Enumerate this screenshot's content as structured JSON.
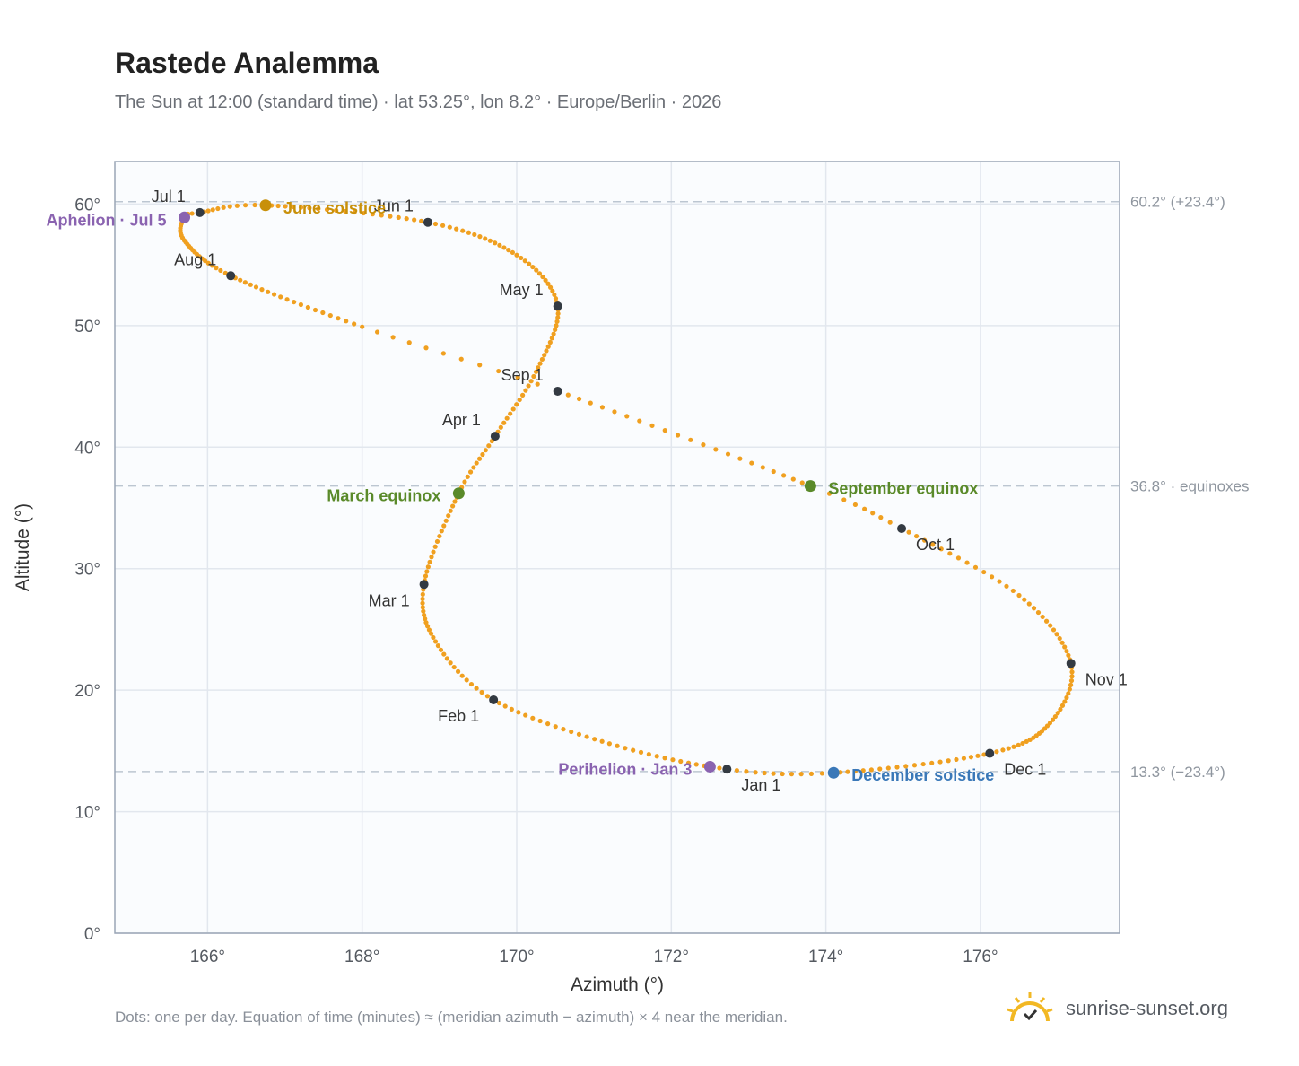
{
  "title": "Rastede Analemma",
  "subtitle": "The Sun at 12:00 (standard time) · lat 53.25°, lon 8.2° · Europe/Berlin · 2026",
  "footnote": "Dots: one per day. Equation of time (minutes) ≈ (meridian azimuth − azimuth) × 4 near the meridian.",
  "brand": "sunrise-sunset.org",
  "chart_data": {
    "type": "scatter",
    "xlabel": "Azimuth (°)",
    "ylabel": "Altitude (°)",
    "xlim": [
      164.8,
      177.8
    ],
    "ylim": [
      0,
      63.5
    ],
    "xticks": [
      166,
      168,
      170,
      172,
      174,
      176
    ],
    "yticks": [
      0,
      10,
      20,
      30,
      40,
      50,
      60
    ],
    "xtick_labels": [
      "166°",
      "168°",
      "170°",
      "172°",
      "174°",
      "176°"
    ],
    "ytick_labels": [
      "0°",
      "10°",
      "20°",
      "30°",
      "40°",
      "50°",
      "60°"
    ],
    "grid": true,
    "reference_lines": [
      {
        "y": 60.2,
        "label": "60.2° (+23.4°)"
      },
      {
        "y": 36.8,
        "label": "36.8° · equinoxes"
      },
      {
        "y": 13.3,
        "label": "13.3° (−23.4°)"
      }
    ],
    "path_keys": [
      {
        "doy": 1,
        "az": 172.72,
        "alt": 13.5
      },
      {
        "doy": 16,
        "az": 171.2,
        "alt": 15.6
      },
      {
        "doy": 32,
        "az": 169.7,
        "alt": 19.2
      },
      {
        "doy": 46,
        "az": 168.95,
        "alt": 24.0
      },
      {
        "doy": 60,
        "az": 168.8,
        "alt": 28.7
      },
      {
        "doy": 79,
        "az": 169.25,
        "alt": 36.2
      },
      {
        "doy": 91,
        "az": 169.72,
        "alt": 40.9
      },
      {
        "doy": 105,
        "az": 170.25,
        "alt": 46.2
      },
      {
        "doy": 121,
        "az": 170.53,
        "alt": 51.6
      },
      {
        "doy": 136,
        "az": 170.0,
        "alt": 55.8
      },
      {
        "doy": 152,
        "az": 168.85,
        "alt": 58.5
      },
      {
        "doy": 172,
        "az": 166.75,
        "alt": 59.9
      },
      {
        "doy": 182,
        "az": 165.9,
        "alt": 59.3
      },
      {
        "doy": 186,
        "az": 165.7,
        "alt": 58.9
      },
      {
        "doy": 197,
        "az": 165.7,
        "alt": 57.0
      },
      {
        "doy": 213,
        "az": 166.3,
        "alt": 54.1
      },
      {
        "doy": 233,
        "az": 168.0,
        "alt": 49.9
      },
      {
        "doy": 244,
        "az": 170.53,
        "alt": 44.6
      },
      {
        "doy": 266,
        "az": 173.8,
        "alt": 36.8
      },
      {
        "doy": 274,
        "az": 174.98,
        "alt": 33.3
      },
      {
        "doy": 289,
        "az": 176.5,
        "alt": 27.8
      },
      {
        "doy": 305,
        "az": 177.17,
        "alt": 22.2
      },
      {
        "doy": 320,
        "az": 176.9,
        "alt": 17.3
      },
      {
        "doy": 335,
        "az": 176.12,
        "alt": 14.8
      },
      {
        "doy": 355,
        "az": 174.1,
        "alt": 13.2
      },
      {
        "doy": 366,
        "az": 172.72,
        "alt": 13.5
      }
    ],
    "month_markers": [
      {
        "label": "Jan 1",
        "az": 172.72,
        "alt": 13.5,
        "anchor": "start",
        "dx": 16,
        "dy": 24
      },
      {
        "label": "Feb 1",
        "az": 169.7,
        "alt": 19.2,
        "anchor": "end",
        "dx": -16,
        "dy": 24
      },
      {
        "label": "Mar 1",
        "az": 168.8,
        "alt": 28.7,
        "anchor": "end",
        "dx": -16,
        "dy": 24
      },
      {
        "label": "Apr 1",
        "az": 169.72,
        "alt": 40.9,
        "anchor": "end",
        "dx": -16,
        "dy": -12
      },
      {
        "label": "May 1",
        "az": 170.53,
        "alt": 51.6,
        "anchor": "end",
        "dx": -16,
        "dy": -12
      },
      {
        "label": "Jun 1",
        "az": 168.85,
        "alt": 58.5,
        "anchor": "end",
        "dx": -16,
        "dy": -12
      },
      {
        "label": "Jul 1",
        "az": 165.9,
        "alt": 59.3,
        "anchor": "end",
        "dx": -16,
        "dy": -12
      },
      {
        "label": "Aug 1",
        "az": 166.3,
        "alt": 54.1,
        "anchor": "end",
        "dx": -16,
        "dy": -12
      },
      {
        "label": "Sep 1",
        "az": 170.53,
        "alt": 44.6,
        "anchor": "end",
        "dx": -16,
        "dy": -12
      },
      {
        "label": "Oct 1",
        "az": 174.98,
        "alt": 33.3,
        "anchor": "start",
        "dx": 16,
        "dy": 24
      },
      {
        "label": "Nov 1",
        "az": 177.17,
        "alt": 22.2,
        "anchor": "start",
        "dx": 16,
        "dy": 24
      },
      {
        "label": "Dec 1",
        "az": 176.12,
        "alt": 14.8,
        "anchor": "start",
        "dx": 16,
        "dy": 24
      }
    ],
    "events": [
      {
        "label": "June solstice",
        "az": 166.75,
        "alt": 59.9,
        "color": "#c8900a",
        "anchor": "start",
        "dx": 20,
        "dy": 9
      },
      {
        "label": "March equinox",
        "az": 169.25,
        "alt": 36.2,
        "color": "#5a8a2a",
        "anchor": "end",
        "dx": -20,
        "dy": 9
      },
      {
        "label": "September equinox",
        "az": 173.8,
        "alt": 36.8,
        "color": "#5a8a2a",
        "anchor": "start",
        "dx": 20,
        "dy": 9
      },
      {
        "label": "December solstice",
        "az": 174.1,
        "alt": 13.2,
        "color": "#3a78b8",
        "anchor": "start",
        "dx": 20,
        "dy": 9
      },
      {
        "label": "Aphelion · Jul 5",
        "az": 165.7,
        "alt": 58.9,
        "color": "#8a63b0",
        "anchor": "end",
        "dx": -20,
        "dy": 9
      },
      {
        "label": "Perihelion · Jan 3",
        "az": 172.5,
        "alt": 13.7,
        "color": "#8a63b0",
        "anchor": "end",
        "dx": -20,
        "dy": 9
      }
    ],
    "colors": {
      "path": "#f0a020",
      "marker": "#333a42",
      "grid": "#e2e7ee",
      "frame": "#9aa5b5",
      "reference": "#bcc6d1"
    }
  }
}
